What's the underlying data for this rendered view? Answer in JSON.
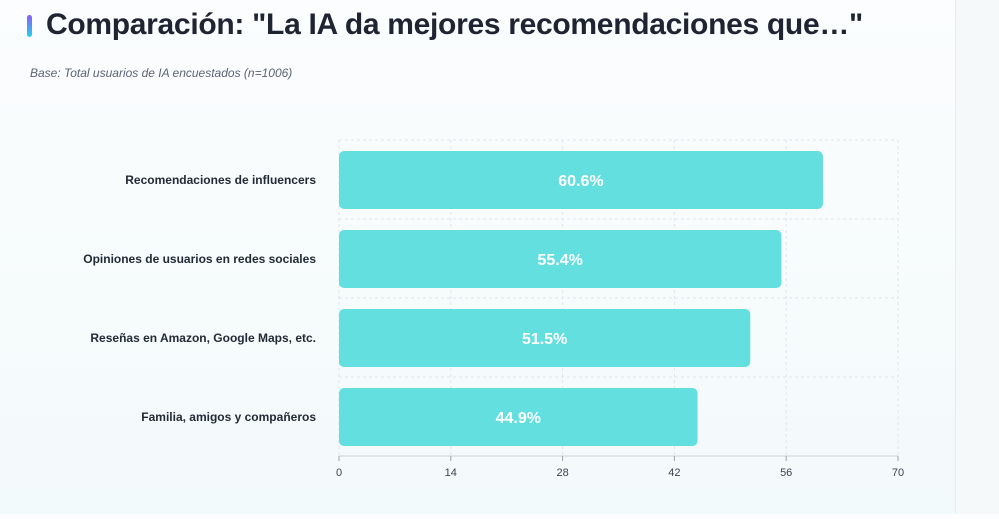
{
  "header": {
    "title": "Comparación: \"La IA da mejores recomendaciones que…\"",
    "subtitle": "Base: Total usuarios de IA encuestados (n=1006)"
  },
  "colors": {
    "bar": "#63dfe0",
    "grid": "#dfe7ea",
    "accent_top": "#8b5cf6",
    "accent_bottom": "#22d3ee"
  },
  "chart_data": {
    "type": "bar",
    "orientation": "horizontal",
    "title": "Comparación: \"La IA da mejores recomendaciones que…\"",
    "categories": [
      "Recomendaciones de influencers",
      "Opiniones de usuarios en redes sociales",
      "Reseñas en Amazon, Google Maps, etc.",
      "Familia, amigos y compañeros"
    ],
    "values": [
      60.6,
      55.4,
      51.5,
      44.9
    ],
    "value_labels": [
      "60.6%",
      "55.4%",
      "51.5%",
      "44.9%"
    ],
    "xlim": [
      0,
      70
    ],
    "xticks": [
      0,
      14,
      28,
      42,
      56,
      70
    ],
    "xlabel": "",
    "ylabel": "",
    "grid": true
  }
}
